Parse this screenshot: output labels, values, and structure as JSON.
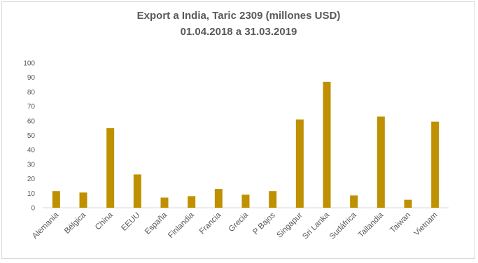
{
  "chart_data": {
    "type": "bar",
    "title": "Export a India, Taric 2309 (millones USD)",
    "subtitle": "01.04.2018 a 31.03.2019",
    "xlabel": "",
    "ylabel": "",
    "ylim": [
      0,
      100
    ],
    "yticks": [
      0,
      10,
      20,
      30,
      40,
      50,
      60,
      70,
      80,
      90,
      100
    ],
    "categories": [
      "Alemania",
      "Bélgica",
      "China",
      "EEUU",
      "España",
      "Finlandia",
      "Francia",
      "Grecia",
      "P Bajos",
      "Singapur",
      "Sri Lanka",
      "Sudáfrica",
      "Tailandia",
      "Taiwan",
      "Vietnam"
    ],
    "values": [
      11.5,
      10.5,
      55,
      23,
      7,
      8,
      13,
      9,
      11.5,
      61,
      87,
      8.5,
      63,
      5.5,
      59.5
    ],
    "bar_color": "#bf9000",
    "grid": false,
    "legend": "none"
  }
}
